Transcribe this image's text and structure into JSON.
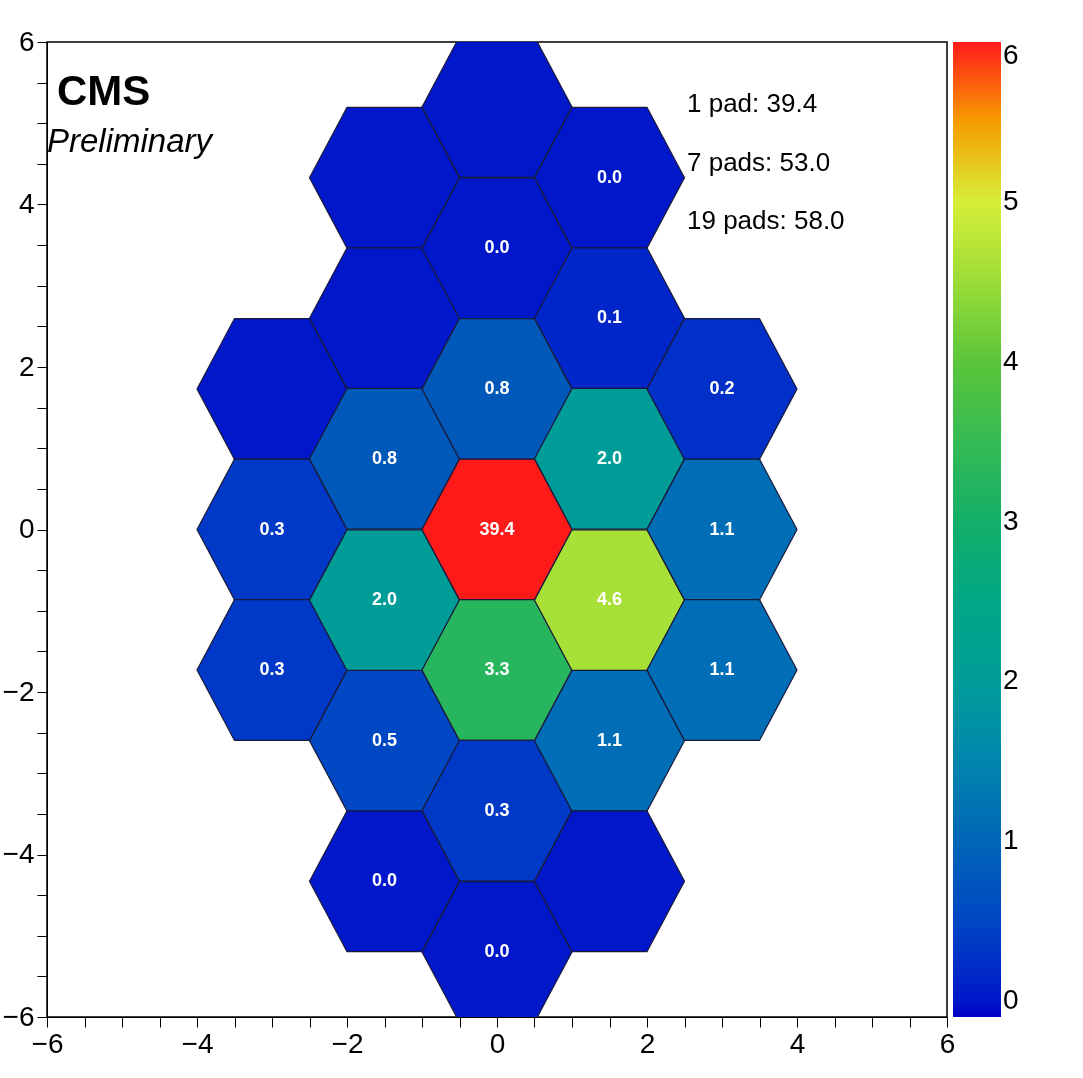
{
  "chart_data": {
    "type": "scatter",
    "x": [
      -3,
      -3,
      -3,
      -1.5,
      -1.5,
      -1.5,
      -1.5,
      -1.5,
      -1.5,
      0,
      0,
      0,
      0,
      0,
      0,
      0,
      1.5,
      1.5,
      1.5,
      1.5,
      1.5,
      1.5,
      3,
      3,
      3
    ],
    "values": [
      1.73,
      0,
      -1.73,
      4.33,
      2.6,
      0.87,
      -0.87,
      -2.6,
      -4.33,
      5.2,
      3.46,
      1.73,
      0,
      -1.73,
      -3.46,
      -5.2,
      4.33,
      2.6,
      0.87,
      -0.87,
      -2.6,
      -4.33,
      1.73,
      0,
      -1.73
    ],
    "cvalues": [
      0,
      0.3,
      0.3,
      0,
      0,
      0.8,
      2.0,
      0.5,
      0.0,
      0,
      0.0,
      0.8,
      39.4,
      3.3,
      0.3,
      0.0,
      0.0,
      0.1,
      2.0,
      4.6,
      1.1,
      0,
      0.2,
      1.1,
      1.1
    ],
    "xlim": [
      -6,
      6
    ],
    "xticks": [
      -6,
      {
        "value": -5.5,
        "label": null
      },
      {
        "value": -5,
        "label": null
      },
      {
        "value": -4.5,
        "label": null
      },
      -4,
      {
        "value": -3.5,
        "label": null
      },
      {
        "value": -3,
        "label": null
      },
      {
        "value": -2.5,
        "label": null
      },
      -2,
      {
        "value": -1.5,
        "label": null
      },
      {
        "value": -1,
        "label": null
      },
      {
        "value": -0.5,
        "label": null
      },
      0,
      {
        "value": 0.5,
        "label": null
      },
      {
        "value": 1,
        "label": null
      },
      {
        "value": 1.5,
        "label": null
      },
      2,
      {
        "value": 2.5,
        "label": null
      },
      {
        "value": 3,
        "label": null
      },
      {
        "value": 3.5,
        "label": null
      },
      4,
      {
        "value": 4.5,
        "label": null
      },
      {
        "value": 5,
        "label": null
      },
      {
        "value": 5.5,
        "label": null
      },
      6
    ],
    "ylim": [
      -6,
      6
    ],
    "yticks": [
      -6,
      {
        "value": -5.5,
        "label": null
      },
      {
        "value": -5,
        "label": null
      },
      {
        "value": -4.5,
        "label": null
      },
      -4,
      {
        "value": -3.5,
        "label": null
      },
      {
        "value": -3,
        "label": null
      },
      {
        "value": -2.5,
        "label": null
      },
      -2,
      {
        "value": -1.5,
        "label": null
      },
      {
        "value": -1,
        "label": null
      },
      {
        "value": -0.5,
        "label": null
      },
      0,
      {
        "value": 0.5,
        "label": null
      },
      {
        "value": 1,
        "label": null
      },
      {
        "value": 1.5,
        "label": null
      },
      2,
      {
        "value": 2.5,
        "label": null
      },
      {
        "value": 3,
        "label": null
      },
      {
        "value": 3.5,
        "label": null
      },
      4,
      {
        "value": 4.5,
        "label": null
      },
      {
        "value": 5,
        "label": null
      },
      {
        "value": 5.5,
        "label": null
      },
      6
    ],
    "clim": [
      -0.1,
      6
    ],
    "cticks": [
      0,
      1,
      2,
      3,
      4,
      5,
      6
    ],
    "annotations": [
      "CMS",
      "Preliminary",
      "1 pad: 39.4",
      "7 pads: 53.0",
      "19 pads: 58.0",
      {
        "text": "0.3",
        "x": -3,
        "y": 0
      },
      {
        "text": "0.3",
        "x": -3,
        "y": -1.73
      },
      {
        "text": "0.8",
        "x": -1.5,
        "y": 0.87
      },
      {
        "text": "2.0",
        "x": -1.5,
        "y": -0.87
      },
      {
        "text": "0.5",
        "x": -1.5,
        "y": -2.6
      },
      {
        "text": "0.0",
        "x": -1.5,
        "y": -4.33
      },
      {
        "text": "0.0",
        "x": 0,
        "y": 3.46
      },
      {
        "text": "0.8",
        "x": 0,
        "y": 1.73
      },
      {
        "text": "39.4",
        "x": 0,
        "y": 0
      },
      {
        "text": "3.3",
        "x": 0,
        "y": -1.73
      },
      {
        "text": "0.3",
        "x": 0,
        "y": -3.46
      },
      {
        "text": "0.0",
        "x": 0,
        "y": -5.2
      },
      {
        "text": "0.0",
        "x": 1.5,
        "y": 4.33
      },
      {
        "text": "0.1",
        "x": 1.5,
        "y": 2.6
      },
      {
        "text": "2.0",
        "x": 1.5,
        "y": 0.87
      },
      {
        "text": "4.6",
        "x": 1.5,
        "y": -0.87
      },
      {
        "text": "1.1",
        "x": 1.5,
        "y": -2.6
      },
      {
        "text": "0.2",
        "x": 3,
        "y": 1.73
      },
      {
        "text": "1.1",
        "x": 3,
        "y": 0
      },
      {
        "text": "1.1",
        "x": 3,
        "y": -1.73
      }
    ]
  }
}
